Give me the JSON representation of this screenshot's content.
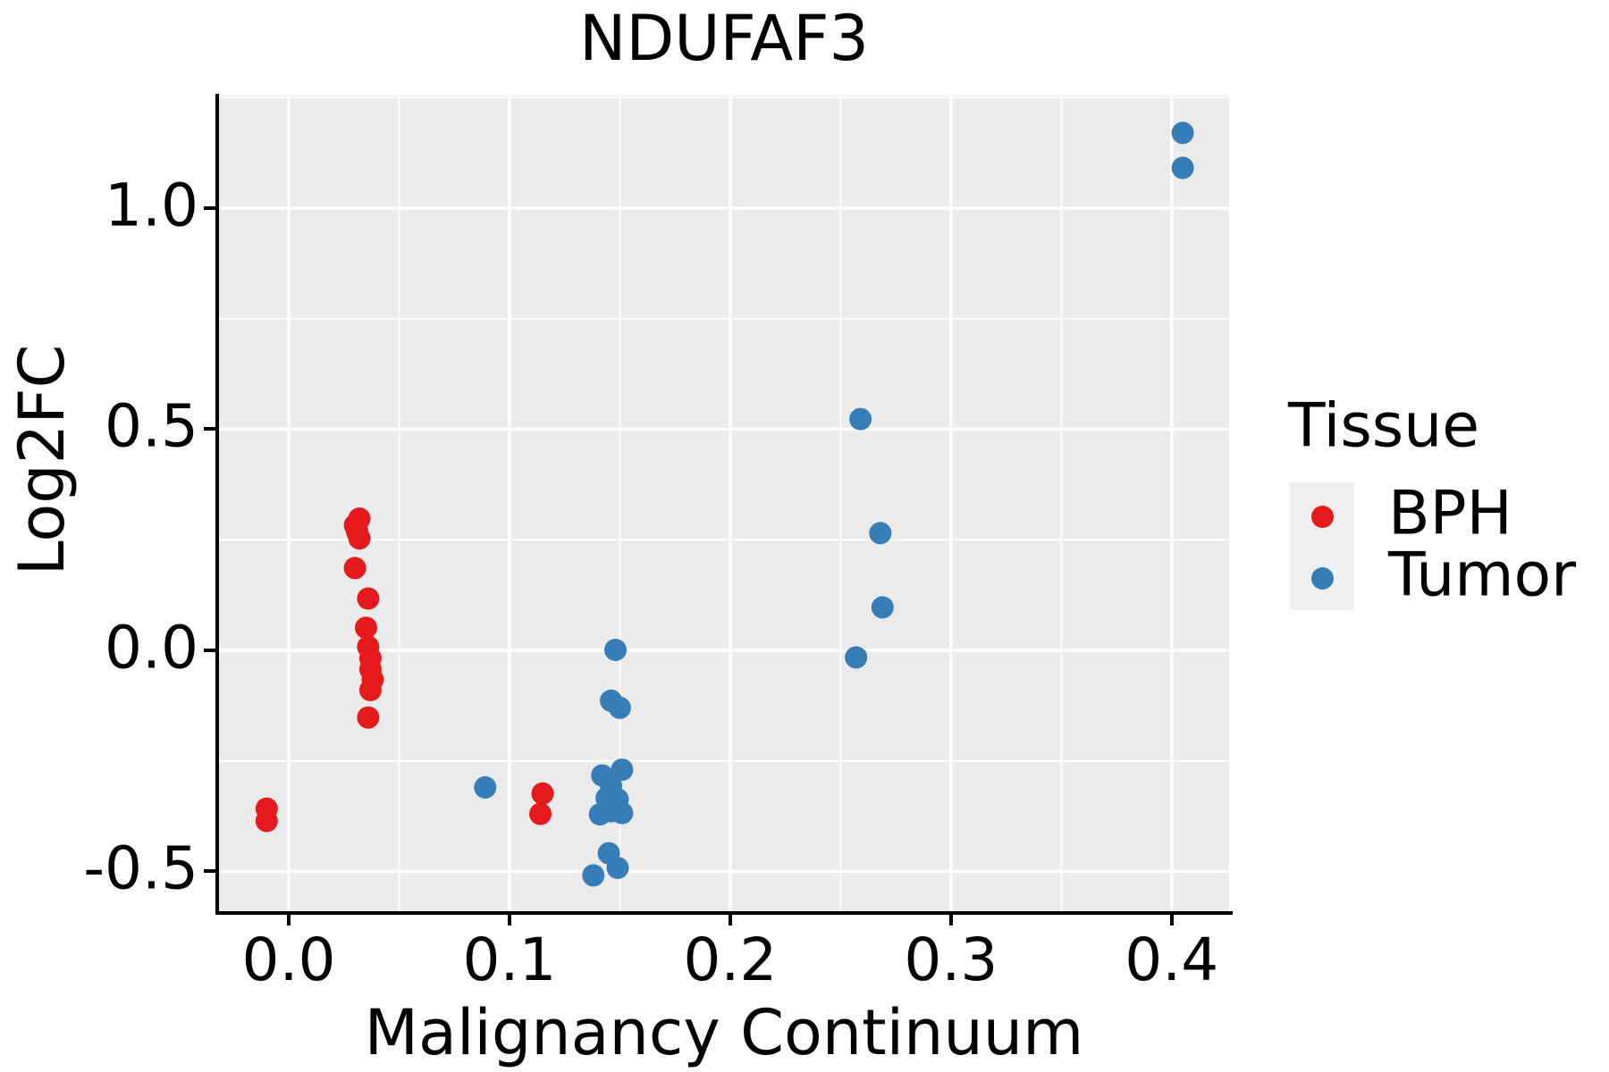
{
  "title": "NDUFAF3",
  "axes": {
    "x": {
      "label": "Malignancy Continuum",
      "ticks": [
        "0.0",
        "0.1",
        "0.2",
        "0.3",
        "0.4"
      ],
      "tick_values": [
        0.0,
        0.1,
        0.2,
        0.3,
        0.4
      ],
      "minor_values": [
        0.05,
        0.15,
        0.25,
        0.35
      ]
    },
    "y": {
      "label": "Log2FC",
      "ticks": [
        "1.0",
        "0.5",
        "0.0",
        "-0.5"
      ],
      "tick_values": [
        1.0,
        0.5,
        0.0,
        -0.5
      ],
      "minor_values": [
        1.25,
        0.75,
        0.25,
        -0.25
      ]
    }
  },
  "legend": {
    "title": "Tissue",
    "items": [
      {
        "label": "BPH",
        "color": "#E41A1C"
      },
      {
        "label": "Tumor",
        "color": "#377EB8"
      }
    ]
  },
  "colors": {
    "panel_background": "#EBEBEB",
    "grid": "#FFFFFF",
    "legend_key_background": "#EFEFEF",
    "bph": "#E41A1C",
    "tumor": "#377EB8"
  },
  "chart_data": {
    "type": "scatter",
    "title": "NDUFAF3",
    "xlabel": "Malignancy Continuum",
    "ylabel": "Log2FC",
    "xlim": [
      -0.0316,
      0.426
    ],
    "ylim": [
      -0.59,
      1.2545
    ],
    "grid": "on",
    "legend_position": "right",
    "series": [
      {
        "name": "BPH",
        "color": "#E41A1C",
        "points": [
          [
            -0.01,
            -0.358
          ],
          [
            -0.01,
            -0.386
          ],
          [
            0.032,
            0.298
          ],
          [
            0.03,
            0.283
          ],
          [
            0.031,
            0.268
          ],
          [
            0.032,
            0.253
          ],
          [
            0.03,
            0.186
          ],
          [
            0.036,
            0.117
          ],
          [
            0.035,
            0.051
          ],
          [
            0.036,
            0.008
          ],
          [
            0.037,
            -0.018
          ],
          [
            0.037,
            -0.043
          ],
          [
            0.038,
            -0.066
          ],
          [
            0.037,
            -0.09
          ],
          [
            0.036,
            -0.152
          ],
          [
            0.115,
            -0.324
          ],
          [
            0.114,
            -0.37
          ]
        ]
      },
      {
        "name": "Tumor",
        "color": "#377EB8",
        "points": [
          [
            0.089,
            -0.31
          ],
          [
            0.148,
            0.001
          ],
          [
            0.146,
            -0.114
          ],
          [
            0.15,
            -0.13
          ],
          [
            0.142,
            -0.283
          ],
          [
            0.151,
            -0.27
          ],
          [
            0.146,
            -0.307
          ],
          [
            0.144,
            -0.334
          ],
          [
            0.149,
            -0.337
          ],
          [
            0.146,
            -0.364
          ],
          [
            0.141,
            -0.371
          ],
          [
            0.151,
            -0.368
          ],
          [
            0.145,
            -0.459
          ],
          [
            0.149,
            -0.492
          ],
          [
            0.138,
            -0.509
          ],
          [
            0.259,
            0.523
          ],
          [
            0.268,
            0.265
          ],
          [
            0.269,
            0.097
          ],
          [
            0.257,
            -0.016
          ],
          [
            0.405,
            1.17
          ],
          [
            0.405,
            1.091
          ]
        ]
      }
    ]
  }
}
